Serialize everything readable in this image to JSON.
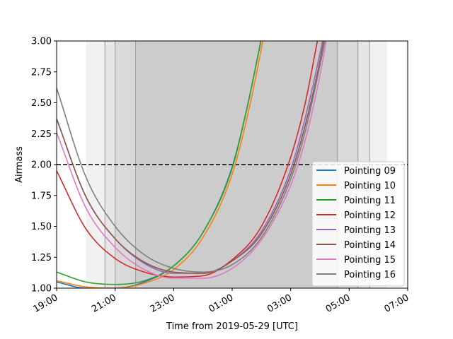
{
  "chart_data": {
    "type": "line",
    "xlabel": "Time from 2019-05-29 [UTC]",
    "ylabel": "Airmass",
    "x_unit": "hours",
    "xlim": [
      19,
      31
    ],
    "ylim": [
      1.0,
      3.0
    ],
    "x_ticks": [
      {
        "value": 19,
        "label": "19:00"
      },
      {
        "value": 21,
        "label": "21:00"
      },
      {
        "value": 23,
        "label": "23:00"
      },
      {
        "value": 25,
        "label": "01:00"
      },
      {
        "value": 27,
        "label": "03:00"
      },
      {
        "value": 29,
        "label": "05:00"
      },
      {
        "value": 31,
        "label": "07:00"
      }
    ],
    "y_ticks": [
      {
        "value": 1.0,
        "label": "1.00"
      },
      {
        "value": 1.25,
        "label": "1.25"
      },
      {
        "value": 1.5,
        "label": "1.50"
      },
      {
        "value": 1.75,
        "label": "1.75"
      },
      {
        "value": 2.0,
        "label": "2.00"
      },
      {
        "value": 2.25,
        "label": "2.25"
      },
      {
        "value": 2.5,
        "label": "2.50"
      },
      {
        "value": 2.75,
        "label": "2.75"
      },
      {
        "value": 3.0,
        "label": "3.00"
      }
    ],
    "grid": false,
    "legend_position": "lower-right",
    "reference_line": {
      "y": 2.0,
      "style": "dashed",
      "color": "#000000"
    },
    "twilight_bands": [
      {
        "x_start": 20.0,
        "x_end": 30.3,
        "color": "#f1f1f1"
      },
      {
        "x_start": 20.65,
        "x_end": 29.7,
        "color": "#e6e6e6"
      },
      {
        "x_start": 21.0,
        "x_end": 29.3,
        "color": "#d9d9d9"
      },
      {
        "x_start": 21.7,
        "x_end": 28.6,
        "color": "#cccccc"
      }
    ],
    "twilight_edges": [
      20.65,
      21.0,
      21.7,
      28.6,
      29.3,
      29.7
    ],
    "series": [
      {
        "name": "Pointing 09",
        "color": "#1f77b4",
        "x": [
          19,
          20,
          21,
          22,
          23,
          24,
          25,
          25.5,
          26,
          26.5
        ],
        "y": [
          1.05,
          1.0,
          1.0,
          1.05,
          1.18,
          1.45,
          1.98,
          2.45,
          3.02,
          3.6
        ]
      },
      {
        "name": "Pointing 10",
        "color": "#ff7f0e",
        "x": [
          19,
          20,
          21,
          22,
          23,
          24,
          25,
          25.5,
          26,
          26.5
        ],
        "y": [
          1.06,
          1.01,
          1.0,
          1.04,
          1.15,
          1.41,
          1.92,
          2.37,
          2.94,
          3.6
        ]
      },
      {
        "name": "Pointing 11",
        "color": "#2ca02c",
        "x": [
          19,
          20,
          21,
          22,
          23,
          24,
          25,
          25.5,
          26,
          26.5
        ],
        "y": [
          1.13,
          1.05,
          1.03,
          1.06,
          1.18,
          1.45,
          1.97,
          2.45,
          3.02,
          3.6
        ]
      },
      {
        "name": "Pointing 12",
        "color": "#d62728",
        "x": [
          19,
          20,
          21,
          22,
          23,
          24,
          25,
          26,
          27,
          27.5,
          28,
          28.5
        ],
        "y": [
          1.95,
          1.48,
          1.24,
          1.13,
          1.09,
          1.1,
          1.23,
          1.5,
          2.06,
          2.5,
          3.1,
          3.6
        ]
      },
      {
        "name": "Pointing 13",
        "color": "#9467bd",
        "x": [
          19,
          20,
          21,
          22,
          23,
          24,
          25,
          26,
          27,
          27.5,
          28,
          28.5
        ],
        "y": [
          2.37,
          1.74,
          1.4,
          1.2,
          1.12,
          1.12,
          1.22,
          1.46,
          1.96,
          2.38,
          2.9,
          3.5
        ]
      },
      {
        "name": "Pointing 14",
        "color": "#8c564b",
        "x": [
          19,
          20,
          21,
          22,
          23,
          24,
          25,
          26,
          27,
          27.5,
          28,
          28.5
        ],
        "y": [
          2.37,
          1.74,
          1.4,
          1.21,
          1.13,
          1.12,
          1.22,
          1.44,
          1.92,
          2.32,
          2.84,
          3.5
        ]
      },
      {
        "name": "Pointing 15",
        "color": "#e377c2",
        "x": [
          19,
          20,
          21,
          22,
          23,
          24,
          25,
          26,
          27,
          27.5,
          28,
          28.5
        ],
        "y": [
          2.26,
          1.65,
          1.33,
          1.15,
          1.08,
          1.08,
          1.16,
          1.39,
          1.83,
          2.2,
          2.72,
          3.4
        ]
      },
      {
        "name": "Pointing 16",
        "color": "#7f7f7f",
        "x": [
          19,
          20,
          21,
          22,
          23,
          24,
          25,
          26,
          27,
          27.5,
          28,
          28.5
        ],
        "y": [
          2.62,
          1.9,
          1.5,
          1.27,
          1.16,
          1.13,
          1.19,
          1.41,
          1.88,
          2.27,
          2.8,
          3.4
        ]
      }
    ]
  }
}
